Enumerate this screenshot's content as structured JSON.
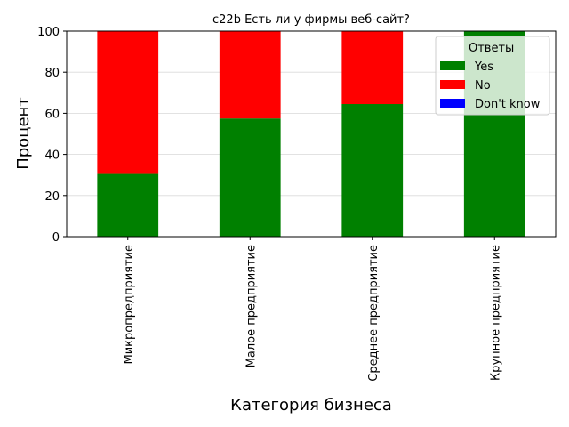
{
  "chart_data": {
    "type": "bar",
    "stacked": true,
    "title": "c22b Есть ли у фирмы веб-сайт?",
    "xlabel": "Категория бизнеса",
    "ylabel": "Процент",
    "ylim": [
      0,
      100
    ],
    "yticks": [
      0,
      20,
      40,
      60,
      80,
      100
    ],
    "grid": "y",
    "categories": [
      "Микропредприятие",
      "Малое предприятие",
      "Среднее предприятие",
      "Крупное предприятие"
    ],
    "series": [
      {
        "name": "Yes",
        "color": "#008000",
        "values": [
          30.5,
          57.5,
          64.5,
          100
        ]
      },
      {
        "name": "No",
        "color": "#ff0000",
        "values": [
          69.5,
          42.5,
          35.5,
          0
        ]
      },
      {
        "name": "Don't know",
        "color": "#0000ff",
        "values": [
          0,
          0,
          0,
          0
        ]
      }
    ],
    "legend": {
      "title": "Ответы",
      "placement": "top-right"
    }
  }
}
